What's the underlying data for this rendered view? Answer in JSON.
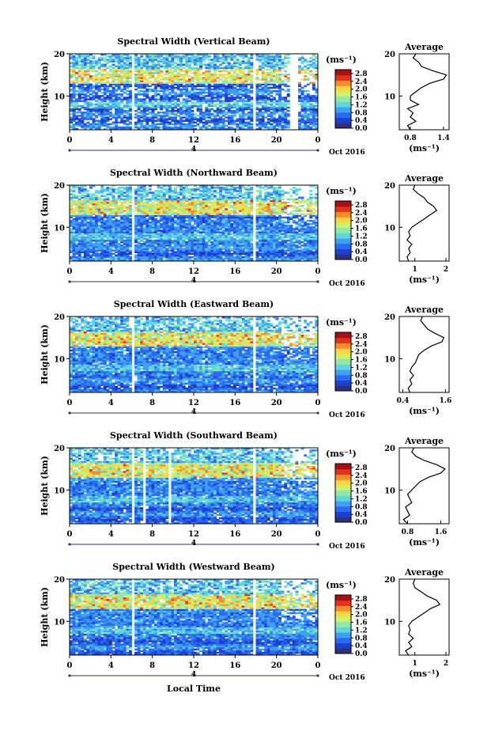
{
  "common": {
    "xlabel": "Local Time",
    "ylabel": "Height (km)",
    "date_label": "Oct 2016",
    "day_label": "4",
    "cb_unit": "(ms⁻¹)",
    "avg_title": "Average",
    "avg_unit": "(ms⁻¹)",
    "x_ticks": [
      "0",
      "4",
      "8",
      "12",
      "16",
      "20",
      "0"
    ],
    "y_ticks": [
      "10",
      "20"
    ],
    "cb_ticks": [
      "0.0",
      "0.4",
      "0.8",
      "1.2",
      "1.6",
      "2.0",
      "2.4",
      "2.8"
    ],
    "colormap": [
      "#30307a",
      "#1c3fd6",
      "#2a6af2",
      "#3fa0f0",
      "#5fd5e0",
      "#8fe8a8",
      "#d0f06a",
      "#f8d840",
      "#f88a28",
      "#e83020",
      "#a81010"
    ]
  },
  "chart_data": [
    {
      "type": "heatmap",
      "title": "Spectral Width (Vertical Beam)",
      "x_range_hours": [
        0,
        24
      ],
      "y_range_km": [
        2,
        20
      ],
      "cb_range": [
        0,
        3
      ],
      "avg_xticks": [
        "0.8",
        "1.4"
      ],
      "avg_xlim": [
        0.6,
        1.5
      ],
      "avg_profile": {
        "height_km": [
          2,
          3,
          4,
          5,
          6,
          7,
          8,
          9,
          10,
          11,
          12,
          13,
          14,
          15,
          16,
          17,
          18,
          19,
          20
        ],
        "width_ms": [
          0.8,
          0.75,
          0.9,
          0.8,
          0.85,
          0.75,
          0.95,
          0.8,
          0.8,
          0.9,
          1.0,
          1.15,
          1.4,
          1.45,
          1.2,
          1.0,
          0.95,
          0.85,
          0.9
        ]
      }
    },
    {
      "type": "heatmap",
      "title": "Spectral Width (Northward Beam)",
      "x_range_hours": [
        0,
        24
      ],
      "y_range_km": [
        2,
        20
      ],
      "cb_range": [
        0,
        3
      ],
      "avg_xticks": [
        "1",
        "2"
      ],
      "avg_xlim": [
        0.5,
        2.1
      ],
      "avg_profile": {
        "height_km": [
          2,
          3,
          4,
          5,
          6,
          7,
          8,
          9,
          10,
          11,
          12,
          13,
          14,
          15,
          16,
          17,
          18,
          19,
          20
        ],
        "width_ms": [
          0.8,
          0.75,
          0.85,
          0.8,
          0.9,
          0.75,
          0.85,
          0.8,
          0.9,
          1.1,
          1.3,
          1.5,
          1.7,
          1.6,
          1.4,
          1.3,
          1.1,
          0.95,
          1.0
        ]
      }
    },
    {
      "type": "heatmap",
      "title": "Spectral Width (Eastward Beam)",
      "x_range_hours": [
        0,
        24
      ],
      "y_range_km": [
        2,
        20
      ],
      "cb_range": [
        0,
        3
      ],
      "avg_xticks": [
        "0.4",
        "1.6"
      ],
      "avg_xlim": [
        0.3,
        1.7
      ],
      "avg_profile": {
        "height_km": [
          2,
          3,
          4,
          5,
          6,
          7,
          8,
          9,
          10,
          11,
          12,
          13,
          14,
          15,
          16,
          17,
          18,
          19,
          20
        ],
        "width_ms": [
          0.6,
          0.55,
          0.65,
          0.6,
          0.7,
          0.6,
          0.65,
          0.75,
          0.8,
          0.85,
          1.0,
          1.2,
          1.5,
          1.55,
          1.3,
          1.1,
          1.0,
          0.9,
          0.95
        ]
      }
    },
    {
      "type": "heatmap",
      "title": "Spectral Width (Southward Beam)",
      "x_range_hours": [
        0,
        24
      ],
      "y_range_km": [
        2,
        20
      ],
      "cb_range": [
        0,
        3
      ],
      "avg_xticks": [
        "0.8",
        "1.6"
      ],
      "avg_xlim": [
        0.6,
        1.8
      ],
      "avg_profile": {
        "height_km": [
          2,
          3,
          4,
          5,
          6,
          7,
          8,
          9,
          10,
          11,
          12,
          13,
          14,
          15,
          16,
          17,
          18,
          19,
          20
        ],
        "width_ms": [
          0.8,
          0.7,
          0.85,
          0.8,
          0.75,
          0.9,
          0.85,
          0.8,
          0.9,
          1.0,
          1.1,
          1.3,
          1.6,
          1.7,
          1.5,
          1.2,
          1.0,
          0.9,
          0.95
        ]
      }
    },
    {
      "type": "heatmap",
      "title": "Spectral Width (Westward Beam)",
      "x_range_hours": [
        0,
        24
      ],
      "y_range_km": [
        2,
        20
      ],
      "cb_range": [
        0,
        3
      ],
      "avg_xticks": [
        "1",
        "2"
      ],
      "avg_xlim": [
        0.5,
        2.1
      ],
      "avg_profile": {
        "height_km": [
          2,
          3,
          4,
          5,
          6,
          7,
          8,
          9,
          10,
          11,
          12,
          13,
          14,
          15,
          16,
          17,
          18,
          19,
          20
        ],
        "width_ms": [
          0.8,
          0.7,
          0.9,
          0.8,
          0.95,
          0.8,
          0.85,
          0.8,
          0.9,
          1.1,
          1.3,
          1.5,
          1.8,
          1.7,
          1.4,
          1.2,
          1.0,
          0.95,
          1.0
        ]
      }
    }
  ]
}
